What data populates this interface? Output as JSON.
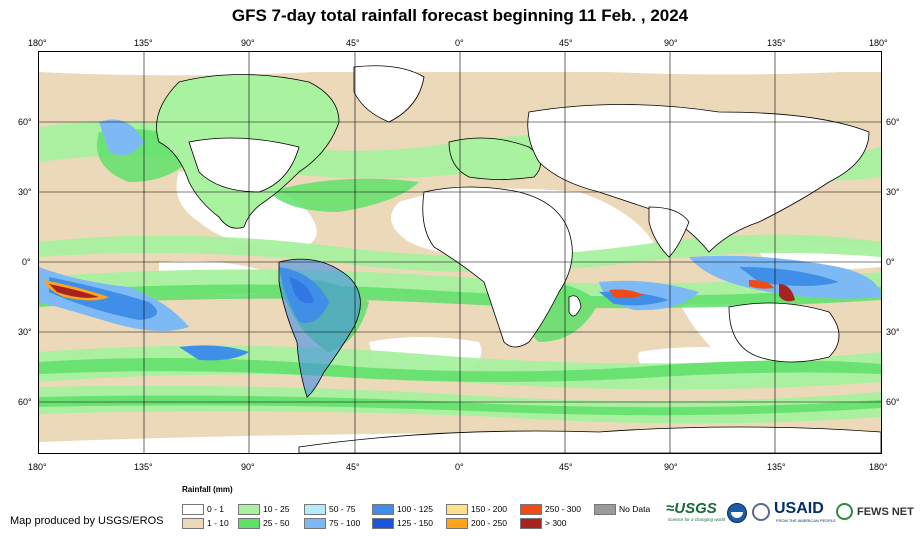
{
  "title": "GFS 7-day total rainfall forecast beginning 11 Feb. , 2024",
  "lon_ticks": [
    "180°",
    "135°",
    "90°",
    "45°",
    "0°",
    "45°",
    "90°",
    "135°",
    "180°"
  ],
  "lat_ticks": [
    "60°",
    "30°",
    "0°",
    "30°",
    "60°"
  ],
  "legend": {
    "title": "Rainfall (mm)",
    "items": [
      {
        "label": "0 - 1",
        "color": "#ffffff"
      },
      {
        "label": "1 - 10",
        "color": "#ecd9b9"
      },
      {
        "label": "10 - 25",
        "color": "#a8f2a0"
      },
      {
        "label": "25 - 50",
        "color": "#5fe06a"
      },
      {
        "label": "50 - 75",
        "color": "#b2ecf7"
      },
      {
        "label": "75 - 100",
        "color": "#7db9f5"
      },
      {
        "label": "100 - 125",
        "color": "#3f8ee8"
      },
      {
        "label": "125 - 150",
        "color": "#1b55d9"
      },
      {
        "label": "150 - 200",
        "color": "#ffe08a"
      },
      {
        "label": "200 - 250",
        "color": "#ffa41b"
      },
      {
        "label": "250 - 300",
        "color": "#f24a16"
      },
      {
        "label": "> 300",
        "color": "#a6231f"
      },
      {
        "label": "No Data",
        "color": "#9a9a9a"
      }
    ]
  },
  "credit": "Map produced by USGS/EROS",
  "logos": {
    "usgs": "≈USGS",
    "usgs_tagline": "science for a changing world",
    "usaid": "USAID",
    "usaid_tagline": "FROM THE AMERICAN PEOPLE",
    "fews": "FEWS NET"
  }
}
